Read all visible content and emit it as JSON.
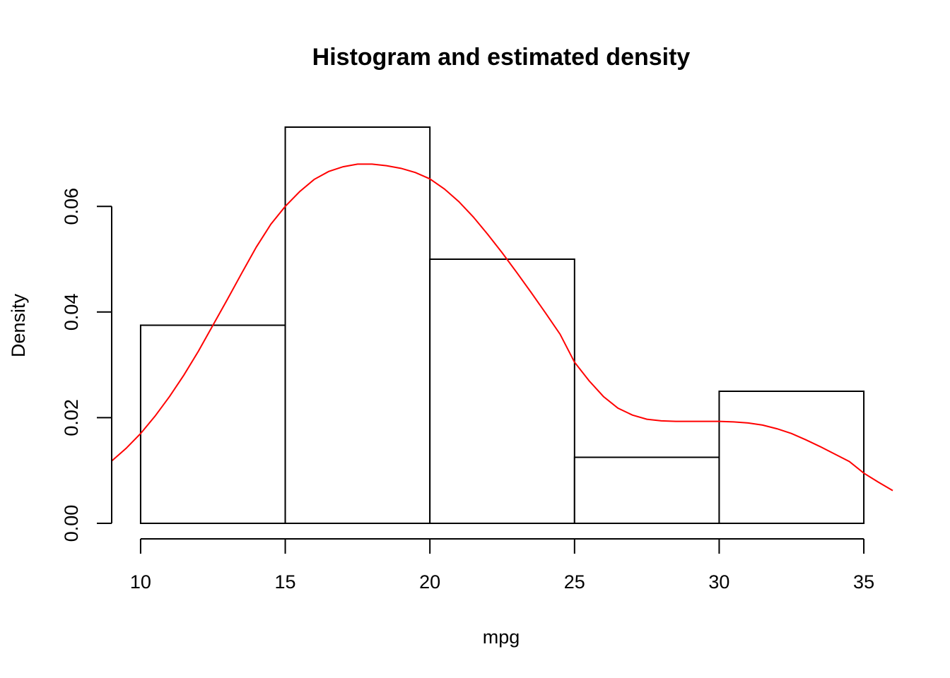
{
  "chart_data": {
    "type": "bar",
    "title": "Histogram and estimated density",
    "xlabel": "mpg",
    "ylabel": "Density",
    "xlim": [
      9,
      36
    ],
    "ylim": [
      0,
      0.075
    ],
    "x_ticks": [
      10,
      15,
      20,
      25,
      30,
      35
    ],
    "x_tick_labels": [
      "10",
      "15",
      "20",
      "25",
      "30",
      "35"
    ],
    "y_ticks": [
      0.0,
      0.02,
      0.04,
      0.06
    ],
    "y_tick_labels": [
      "0.00",
      "0.02",
      "0.04",
      "0.06"
    ],
    "bins": [
      {
        "from": 10,
        "to": 15,
        "density": 0.0375
      },
      {
        "from": 15,
        "to": 20,
        "density": 0.075
      },
      {
        "from": 20,
        "to": 25,
        "density": 0.05
      },
      {
        "from": 25,
        "to": 30,
        "density": 0.0125
      },
      {
        "from": 30,
        "to": 35,
        "density": 0.025
      }
    ],
    "density_curve": {
      "color": "#ff0000",
      "x": [
        9,
        9.5,
        10,
        10.5,
        11,
        11.5,
        12,
        12.5,
        13,
        13.5,
        14,
        14.5,
        15,
        15.5,
        16,
        16.5,
        17,
        17.5,
        18,
        18.5,
        19,
        19.5,
        20,
        20.5,
        21,
        21.5,
        22,
        22.5,
        23,
        23.5,
        24,
        24.5,
        25,
        25.5,
        26,
        26.5,
        27,
        27.5,
        28,
        28.5,
        29,
        29.5,
        30,
        30.5,
        31,
        31.5,
        32,
        32.5,
        33,
        33.5,
        34,
        34.5,
        35,
        35.5,
        36
      ],
      "y": [
        0.0118,
        0.0142,
        0.017,
        0.0203,
        0.024,
        0.0281,
        0.0326,
        0.0375,
        0.0424,
        0.0474,
        0.0523,
        0.0566,
        0.06,
        0.0628,
        0.0651,
        0.0666,
        0.0675,
        0.068,
        0.068,
        0.0677,
        0.0672,
        0.0664,
        0.0652,
        0.0633,
        0.0609,
        0.058,
        0.0547,
        0.0512,
        0.0475,
        0.0437,
        0.0398,
        0.0358,
        0.0305,
        0.027,
        0.024,
        0.0218,
        0.0205,
        0.0197,
        0.0194,
        0.0193,
        0.0193,
        0.0193,
        0.0193,
        0.0192,
        0.019,
        0.0186,
        0.0179,
        0.017,
        0.0158,
        0.0145,
        0.0131,
        0.0117,
        0.0095,
        0.0078,
        0.0062
      ]
    }
  }
}
